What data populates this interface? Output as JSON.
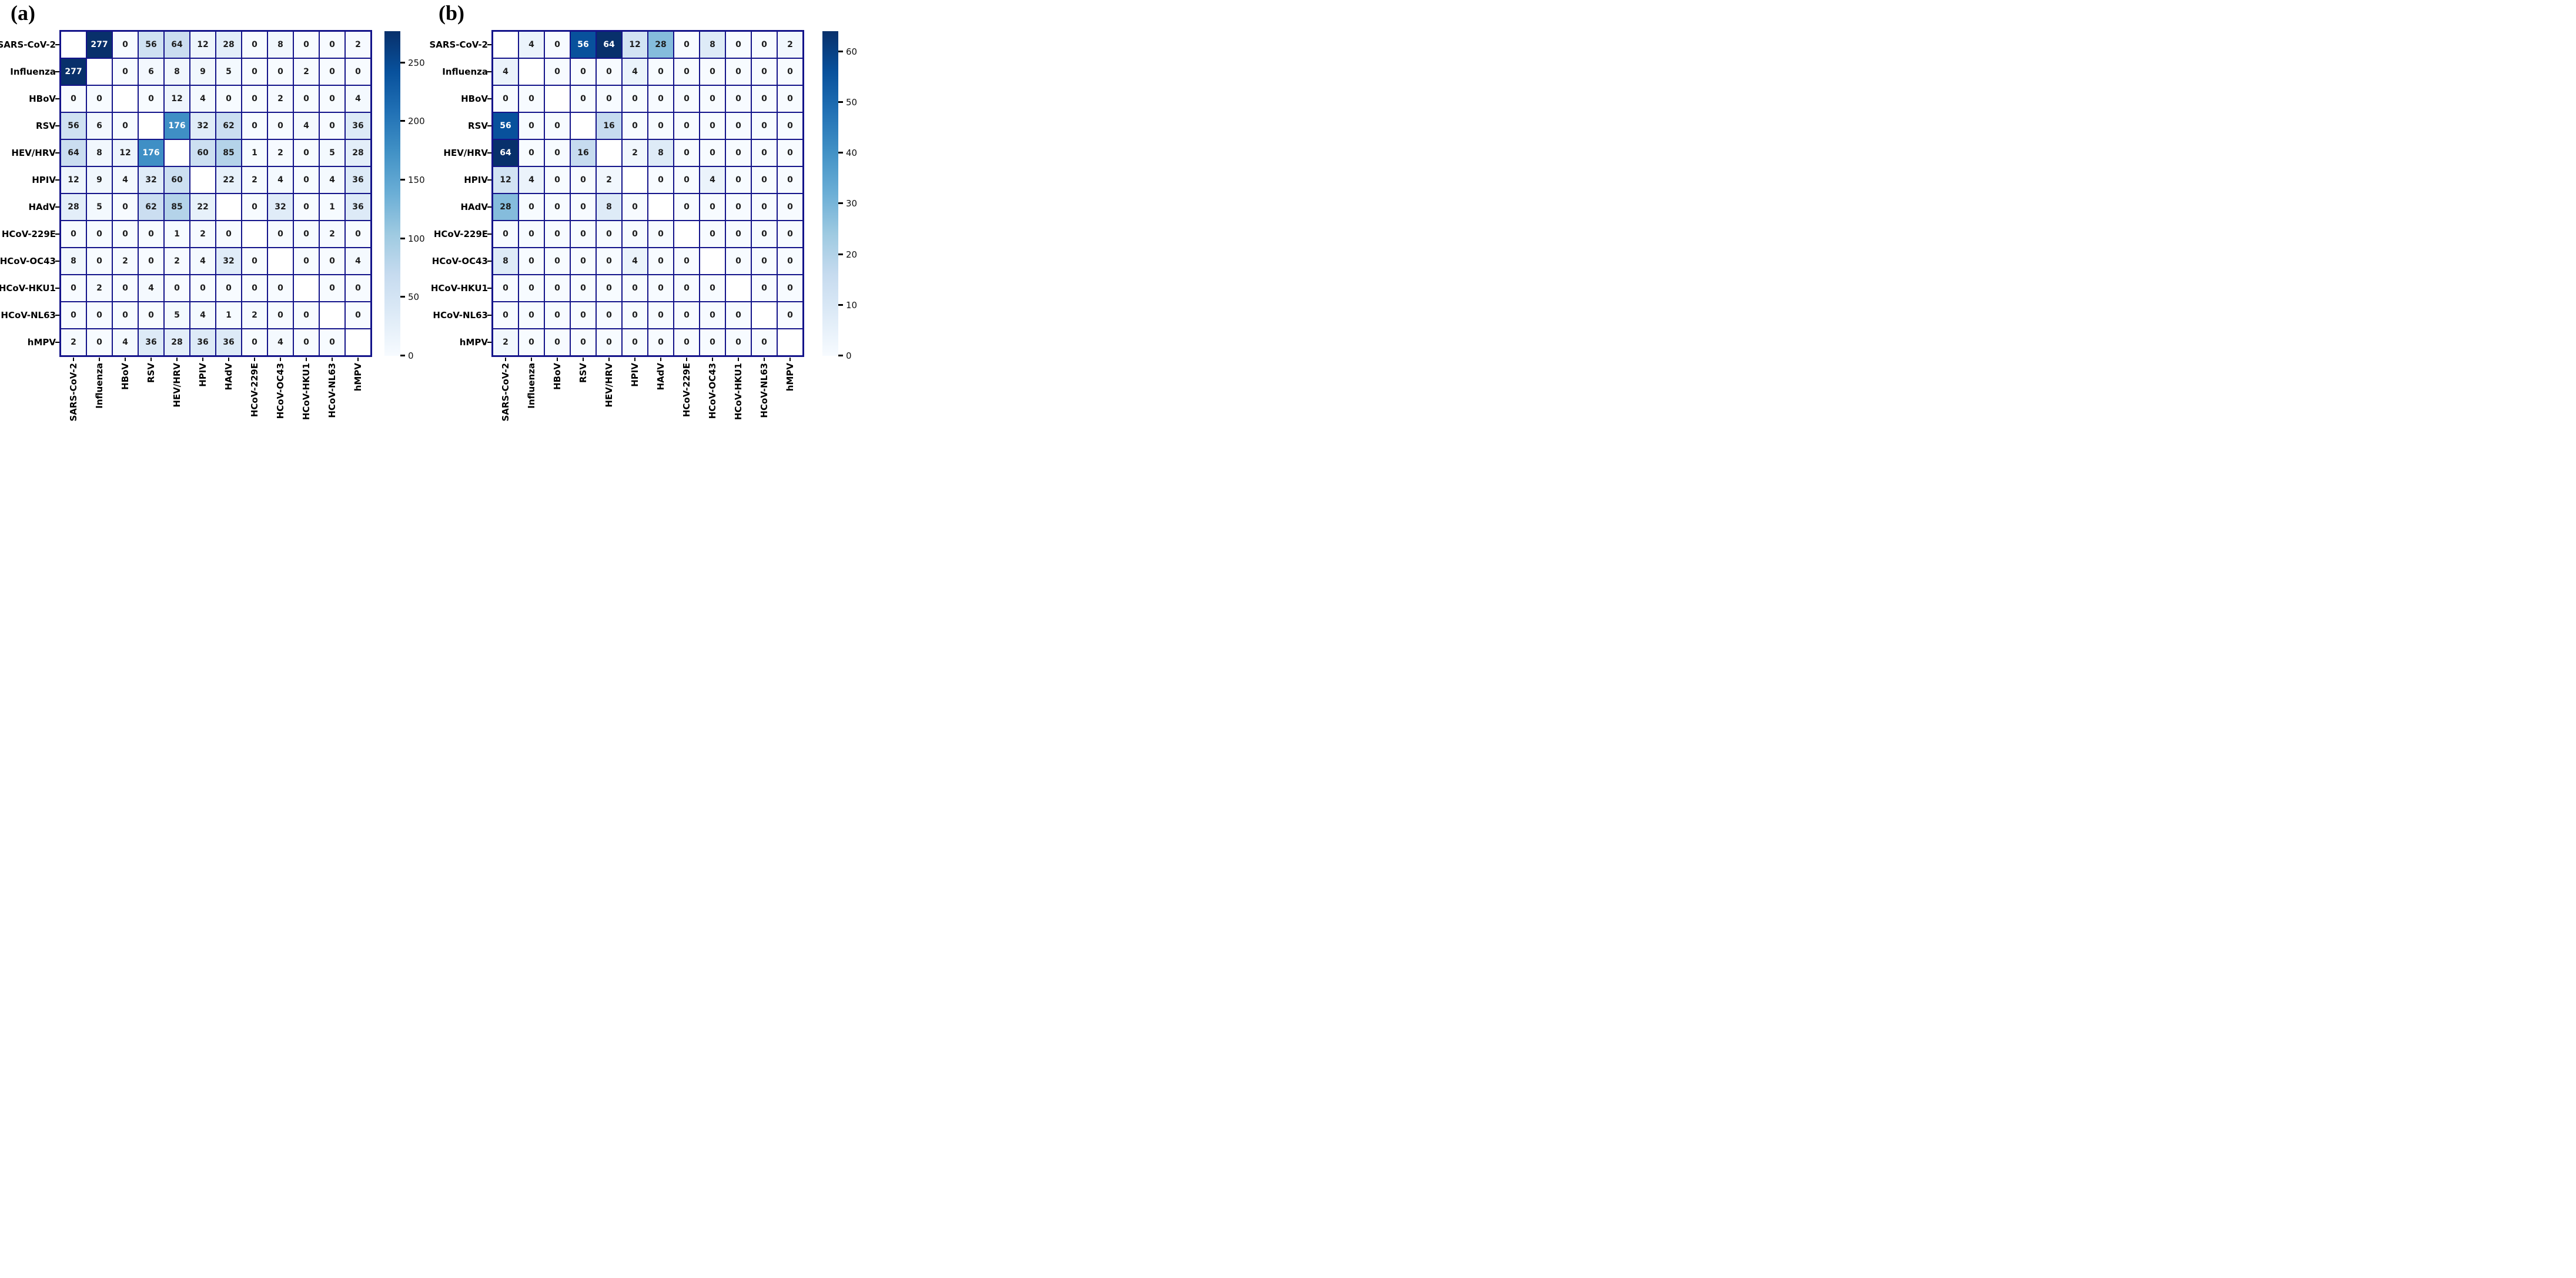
{
  "figure_colors": {
    "grid_line": "#14148a",
    "diagonal_cell": "#ffffff",
    "annot_dark_text": "#1c1c1c",
    "annot_light_text": "#ffffff",
    "tick_mark": "#000000",
    "blues_ramp": [
      "#f7fbff",
      "#deebf7",
      "#c6dbef",
      "#9ecae1",
      "#6baed6",
      "#4292c6",
      "#2171b5",
      "#08519c",
      "#08306b"
    ]
  },
  "chart_data": [
    {
      "type": "heatmap",
      "panel_label": "(a)",
      "colormap": "Blues",
      "grid": true,
      "legend_position": "right-colorbar",
      "x_labels": [
        "SARS-CoV-2",
        "Influenza",
        "HBoV",
        "RSV",
        "HEV/HRV",
        "HPIV",
        "HAdV",
        "HCoV-229E",
        "HCoV-OC43",
        "HCoV-HKU1",
        "HCoV-NL63",
        "hMPV"
      ],
      "y_labels": [
        "SARS-CoV-2",
        "Influenza",
        "HBoV",
        "RSV",
        "HEV/HRV",
        "HPIV",
        "HAdV",
        "HCoV-229E",
        "HCoV-OC43",
        "HCoV-HKU1",
        "HCoV-NL63",
        "hMPV"
      ],
      "values": [
        [
          null,
          277,
          0,
          56,
          64,
          12,
          28,
          0,
          8,
          0,
          0,
          2
        ],
        [
          277,
          null,
          0,
          6,
          8,
          9,
          5,
          0,
          0,
          2,
          0,
          0
        ],
        [
          0,
          0,
          null,
          0,
          12,
          4,
          0,
          0,
          2,
          0,
          0,
          4
        ],
        [
          56,
          6,
          0,
          null,
          176,
          32,
          62,
          0,
          0,
          4,
          0,
          36
        ],
        [
          64,
          8,
          12,
          176,
          null,
          60,
          85,
          1,
          2,
          0,
          5,
          28
        ],
        [
          12,
          9,
          4,
          32,
          60,
          null,
          22,
          2,
          4,
          0,
          4,
          36
        ],
        [
          28,
          5,
          0,
          62,
          85,
          22,
          null,
          0,
          32,
          0,
          1,
          36
        ],
        [
          0,
          0,
          0,
          0,
          1,
          2,
          0,
          null,
          0,
          0,
          2,
          0
        ],
        [
          8,
          0,
          2,
          0,
          2,
          4,
          32,
          0,
          null,
          0,
          0,
          4
        ],
        [
          0,
          2,
          0,
          4,
          0,
          0,
          0,
          0,
          0,
          null,
          0,
          0
        ],
        [
          0,
          0,
          0,
          0,
          5,
          4,
          1,
          2,
          0,
          0,
          null,
          0
        ],
        [
          2,
          0,
          4,
          36,
          28,
          36,
          36,
          0,
          4,
          0,
          0,
          null
        ]
      ],
      "vmin": 0,
      "vmax": 277,
      "colorbar_ticks": [
        0,
        50,
        100,
        150,
        200,
        250
      ]
    },
    {
      "type": "heatmap",
      "panel_label": "(b)",
      "colormap": "Blues",
      "grid": true,
      "legend_position": "right-colorbar",
      "x_labels": [
        "SARS-CoV-2",
        "Influenza",
        "HBoV",
        "RSV",
        "HEV/HRV",
        "HPIV",
        "HAdV",
        "HCoV-229E",
        "HCoV-OC43",
        "HCoV-HKU1",
        "HCoV-NL63",
        "hMPV"
      ],
      "y_labels": [
        "SARS-CoV-2",
        "Influenza",
        "HBoV",
        "RSV",
        "HEV/HRV",
        "HPIV",
        "HAdV",
        "HCoV-229E",
        "HCoV-OC43",
        "HCoV-HKU1",
        "HCoV-NL63",
        "hMPV"
      ],
      "values": [
        [
          null,
          4,
          0,
          56,
          64,
          12,
          28,
          0,
          8,
          0,
          0,
          2
        ],
        [
          4,
          null,
          0,
          0,
          0,
          4,
          0,
          0,
          0,
          0,
          0,
          0
        ],
        [
          0,
          0,
          null,
          0,
          0,
          0,
          0,
          0,
          0,
          0,
          0,
          0
        ],
        [
          56,
          0,
          0,
          null,
          16,
          0,
          0,
          0,
          0,
          0,
          0,
          0
        ],
        [
          64,
          0,
          0,
          16,
          null,
          2,
          8,
          0,
          0,
          0,
          0,
          0
        ],
        [
          12,
          4,
          0,
          0,
          2,
          null,
          0,
          0,
          4,
          0,
          0,
          0
        ],
        [
          28,
          0,
          0,
          0,
          8,
          0,
          null,
          0,
          0,
          0,
          0,
          0
        ],
        [
          0,
          0,
          0,
          0,
          0,
          0,
          0,
          null,
          0,
          0,
          0,
          0
        ],
        [
          8,
          0,
          0,
          0,
          0,
          4,
          0,
          0,
          null,
          0,
          0,
          0
        ],
        [
          0,
          0,
          0,
          0,
          0,
          0,
          0,
          0,
          0,
          null,
          0,
          0
        ],
        [
          0,
          0,
          0,
          0,
          0,
          0,
          0,
          0,
          0,
          0,
          null,
          0
        ],
        [
          2,
          0,
          0,
          0,
          0,
          0,
          0,
          0,
          0,
          0,
          0,
          null
        ]
      ],
      "vmin": 0,
      "vmax": 64,
      "colorbar_ticks": [
        0,
        10,
        20,
        30,
        40,
        50,
        60
      ]
    }
  ]
}
